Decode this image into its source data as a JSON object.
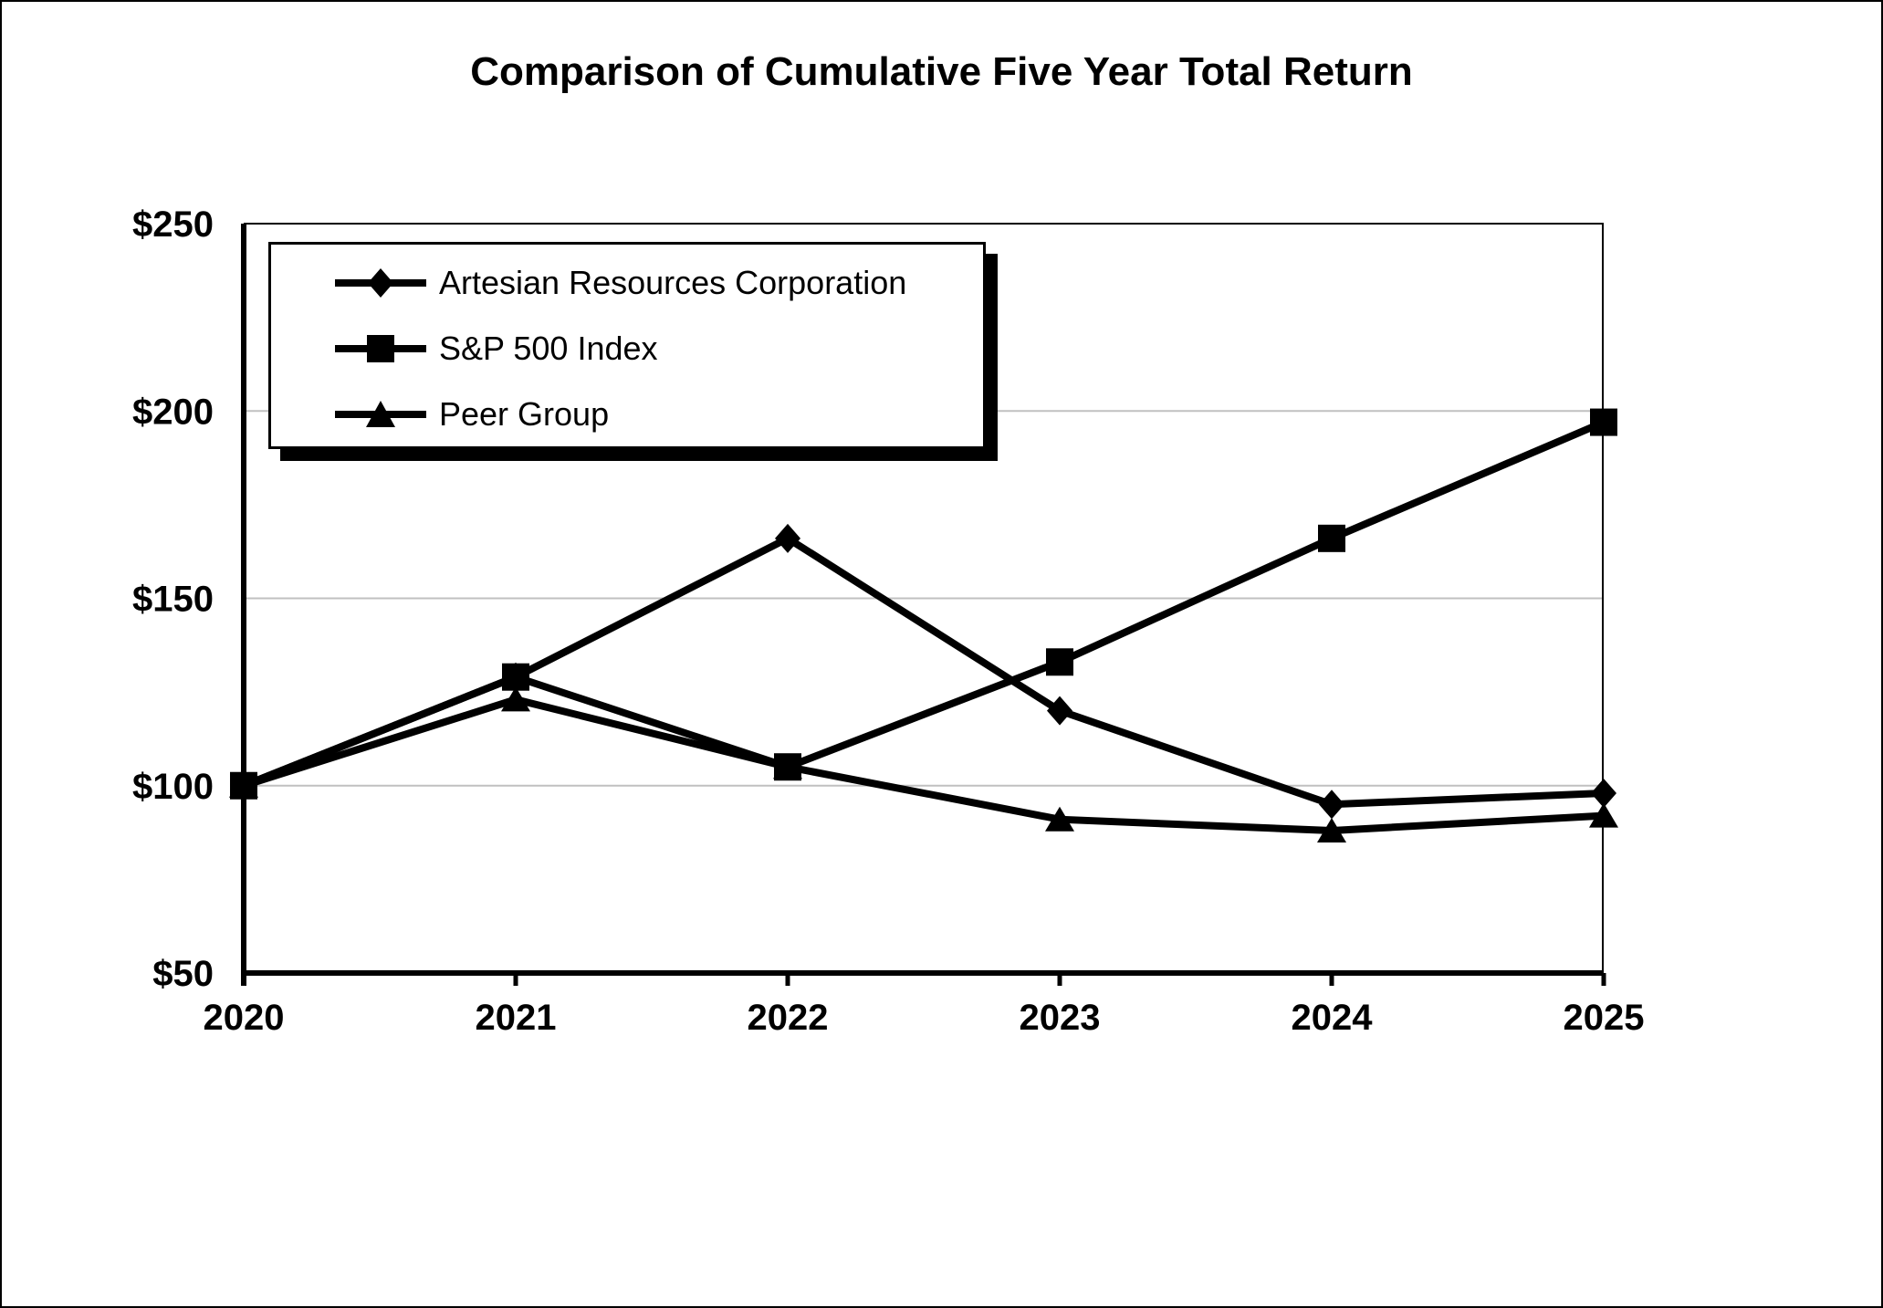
{
  "chart_data": {
    "type": "line",
    "title": "Comparison of Cumulative Five Year Total Return",
    "x_labels": [
      "2020",
      "2021",
      "2022",
      "2023",
      "2024",
      "2025"
    ],
    "y_ticks": [
      50,
      100,
      150,
      200,
      250
    ],
    "y_tick_labels": [
      "$50",
      "$100",
      "$150",
      "$200",
      "$250"
    ],
    "ylim": [
      50,
      250
    ],
    "grid_values": [
      100,
      150,
      200
    ],
    "grid_on": true,
    "legend_position": "top-left",
    "line_color": "#000000",
    "grid_color": "#c0c0c0",
    "axis_color": "#000000",
    "series": [
      {
        "name": "Artesian Resources Corporation",
        "marker": "diamond",
        "values": [
          100,
          129,
          166,
          120,
          95,
          98
        ]
      },
      {
        "name": "S&P 500 Index",
        "marker": "square",
        "values": [
          100,
          129,
          105,
          133,
          166,
          197
        ]
      },
      {
        "name": "Peer Group",
        "marker": "triangle",
        "values": [
          100,
          123,
          105,
          91,
          88,
          92
        ]
      }
    ]
  }
}
